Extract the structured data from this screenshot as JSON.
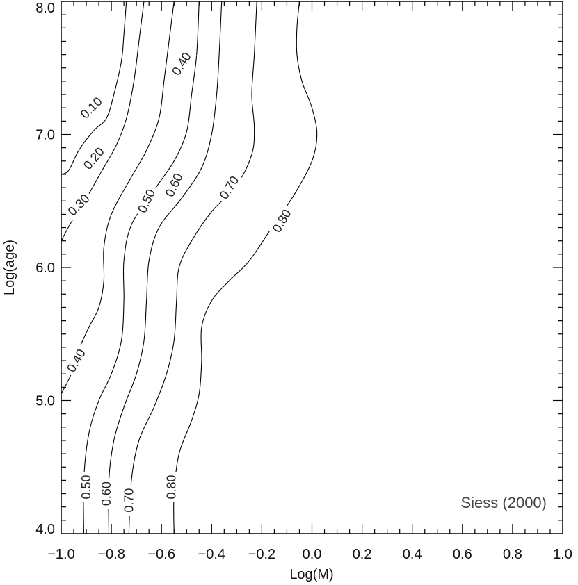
{
  "chart_data": {
    "type": "line",
    "xlabel": "Log(M)",
    "ylabel": "Log(age)",
    "xlim": [
      -1.0,
      1.0
    ],
    "ylim": [
      4.0,
      8.0
    ],
    "x_ticks": [
      -1.0,
      -0.8,
      -0.6,
      -0.4,
      -0.2,
      0.0,
      0.2,
      0.4,
      0.6,
      0.8,
      1.0
    ],
    "x_tick_labels": [
      "−1.0",
      "−0.8",
      "−0.6",
      "−0.4",
      "−0.2",
      "0.0",
      "0.2",
      "0.4",
      "0.6",
      "0.8",
      "1.0"
    ],
    "y_ticks": [
      4.0,
      5.0,
      6.0,
      7.0,
      8.0
    ],
    "y_tick_labels": [
      "4.0",
      "5.0",
      "6.0",
      "7.0",
      "8.0"
    ],
    "x_minor_step": 0.05,
    "y_minor_step": 0.1,
    "grid": false,
    "annotation": "Siess (2000)",
    "series": [
      {
        "points": [
          [
            -1.0,
            6.7
          ],
          [
            -0.97,
            6.73
          ],
          [
            -0.93,
            6.88
          ],
          [
            -0.87,
            7.03
          ],
          [
            -0.82,
            7.12
          ],
          [
            -0.79,
            7.3
          ],
          [
            -0.76,
            7.55
          ],
          [
            -0.75,
            7.75
          ],
          [
            -0.74,
            8.0
          ]
        ],
        "labels": [
          {
            "text": "0.10",
            "x": -0.88,
            "y": 7.2,
            "angle": -45
          }
        ]
      },
      {
        "points": [
          [
            -1.0,
            6.2
          ],
          [
            -0.96,
            6.34
          ],
          [
            -0.9,
            6.52
          ],
          [
            -0.84,
            6.72
          ],
          [
            -0.78,
            6.92
          ],
          [
            -0.74,
            7.12
          ],
          [
            -0.71,
            7.4
          ],
          [
            -0.69,
            7.7
          ],
          [
            -0.67,
            8.0
          ]
        ],
        "labels": [
          {
            "text": "0.20",
            "x": -0.87,
            "y": 6.82,
            "angle": -50
          },
          {
            "text": "0.30",
            "x": -0.93,
            "y": 6.47,
            "angle": -45
          }
        ]
      },
      {
        "points": [
          [
            -1.0,
            5.05
          ],
          [
            -0.96,
            5.2
          ],
          [
            -0.93,
            5.38
          ],
          [
            -0.89,
            5.55
          ],
          [
            -0.85,
            5.7
          ],
          [
            -0.83,
            5.9
          ],
          [
            -0.83,
            6.15
          ],
          [
            -0.8,
            6.4
          ],
          [
            -0.72,
            6.68
          ],
          [
            -0.66,
            6.88
          ],
          [
            -0.61,
            7.12
          ],
          [
            -0.59,
            7.4
          ],
          [
            -0.57,
            7.7
          ],
          [
            -0.55,
            8.0
          ]
        ],
        "labels": [
          {
            "text": "0.40",
            "x": -0.94,
            "y": 5.3,
            "angle": -60
          },
          {
            "text": "0.40",
            "x": -0.52,
            "y": 7.53,
            "angle": -58
          }
        ]
      },
      {
        "points": [
          [
            -0.91,
            4.0
          ],
          [
            -0.91,
            4.4
          ],
          [
            -0.89,
            4.75
          ],
          [
            -0.85,
            5.0
          ],
          [
            -0.8,
            5.2
          ],
          [
            -0.76,
            5.45
          ],
          [
            -0.75,
            5.75
          ],
          [
            -0.75,
            6.05
          ],
          [
            -0.72,
            6.32
          ],
          [
            -0.63,
            6.58
          ],
          [
            -0.55,
            6.8
          ],
          [
            -0.5,
            7.02
          ],
          [
            -0.48,
            7.3
          ],
          [
            -0.46,
            7.6
          ],
          [
            -0.45,
            8.0
          ]
        ],
        "labels": [
          {
            "text": "0.50",
            "x": -0.9,
            "y": 4.35,
            "angle": -90
          },
          {
            "text": "0.50",
            "x": -0.66,
            "y": 6.5,
            "angle": -65
          }
        ]
      },
      {
        "points": [
          [
            -0.81,
            4.0
          ],
          [
            -0.81,
            4.4
          ],
          [
            -0.79,
            4.7
          ],
          [
            -0.75,
            4.95
          ],
          [
            -0.7,
            5.2
          ],
          [
            -0.67,
            5.45
          ],
          [
            -0.66,
            5.75
          ],
          [
            -0.65,
            6.05
          ],
          [
            -0.61,
            6.3
          ],
          [
            -0.52,
            6.52
          ],
          [
            -0.44,
            6.75
          ],
          [
            -0.4,
            7.0
          ],
          [
            -0.38,
            7.3
          ],
          [
            -0.37,
            7.6
          ],
          [
            -0.36,
            8.0
          ]
        ],
        "labels": [
          {
            "text": "0.60",
            "x": -0.82,
            "y": 4.3,
            "angle": -90
          },
          {
            "text": "0.60",
            "x": -0.55,
            "y": 6.62,
            "angle": -65
          }
        ]
      },
      {
        "points": [
          [
            -0.73,
            4.0
          ],
          [
            -0.72,
            4.4
          ],
          [
            -0.69,
            4.7
          ],
          [
            -0.63,
            4.95
          ],
          [
            -0.58,
            5.2
          ],
          [
            -0.55,
            5.45
          ],
          [
            -0.54,
            5.75
          ],
          [
            -0.53,
            6.0
          ],
          [
            -0.48,
            6.2
          ],
          [
            -0.4,
            6.42
          ],
          [
            -0.3,
            6.62
          ],
          [
            -0.24,
            6.85
          ],
          [
            -0.23,
            7.05
          ],
          [
            -0.24,
            7.3
          ],
          [
            -0.23,
            7.6
          ],
          [
            -0.22,
            8.0
          ]
        ],
        "labels": [
          {
            "text": "0.70",
            "x": -0.73,
            "y": 4.25,
            "angle": -90
          },
          {
            "text": "0.70",
            "x": -0.33,
            "y": 6.6,
            "angle": -58
          }
        ]
      },
      {
        "points": [
          [
            -0.55,
            4.0
          ],
          [
            -0.55,
            4.3
          ],
          [
            -0.53,
            4.6
          ],
          [
            -0.48,
            4.85
          ],
          [
            -0.45,
            5.05
          ],
          [
            -0.44,
            5.3
          ],
          [
            -0.44,
            5.55
          ],
          [
            -0.4,
            5.75
          ],
          [
            -0.33,
            5.9
          ],
          [
            -0.25,
            6.05
          ],
          [
            -0.16,
            6.3
          ],
          [
            -0.07,
            6.55
          ],
          [
            0.0,
            6.8
          ],
          [
            0.02,
            7.0
          ],
          [
            0.0,
            7.2
          ],
          [
            -0.04,
            7.4
          ],
          [
            -0.06,
            7.6
          ],
          [
            -0.06,
            7.8
          ],
          [
            -0.05,
            8.0
          ]
        ],
        "labels": [
          {
            "text": "0.80",
            "x": -0.56,
            "y": 4.35,
            "angle": -90
          },
          {
            "text": "0.80",
            "x": -0.12,
            "y": 6.35,
            "angle": -60
          }
        ]
      }
    ]
  }
}
